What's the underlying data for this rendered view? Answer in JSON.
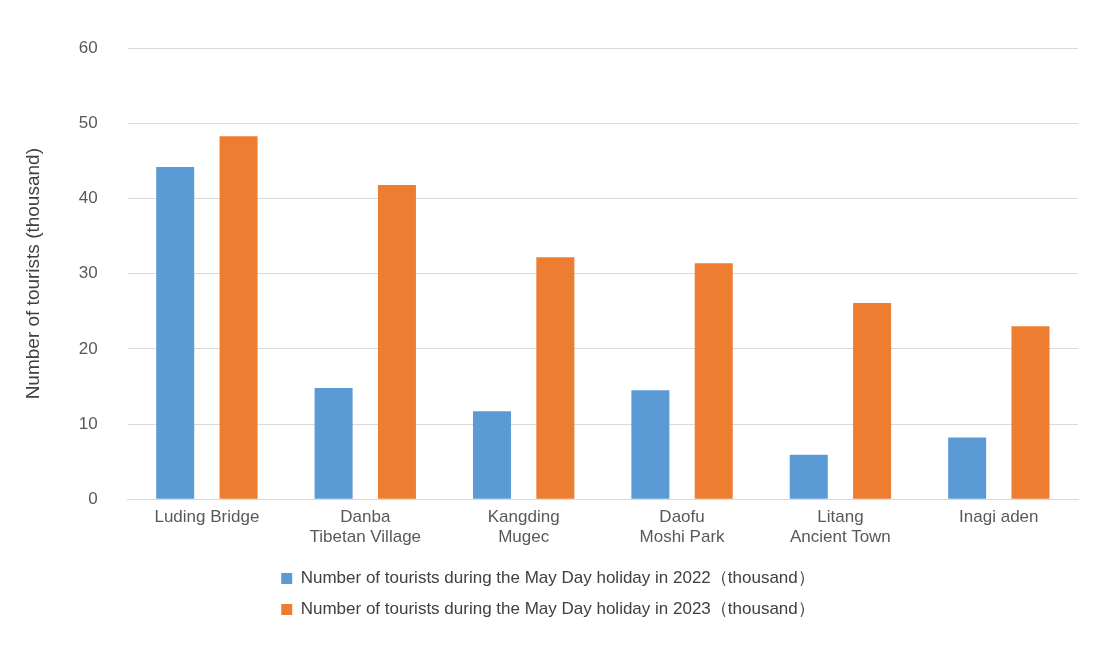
{
  "chart_data": {
    "type": "bar",
    "ylabel": "Number of tourists (thousand)",
    "categories": [
      "Luding Bridge",
      "Danba\nTibetan Village",
      "Kangding\nMugec",
      "Daofu\nMoshi Park",
      "Litang\nAncient Town",
      "Inagi aden"
    ],
    "series": [
      {
        "name": "Number of tourists during the May Day holiday in 2022（thousand）",
        "color": "#5b9bd5",
        "values": [
          44.2,
          14.8,
          11.7,
          14.5,
          5.9,
          8.2
        ]
      },
      {
        "name": "Number of tourists during the May Day holiday in 2023（thousand）",
        "color": "#ed7d31",
        "values": [
          48.3,
          41.8,
          32.2,
          31.4,
          26.1,
          23.0
        ]
      }
    ],
    "ylim": [
      0,
      60
    ],
    "yticks": [
      0,
      10,
      20,
      30,
      40,
      50,
      60
    ],
    "grid": "y",
    "legend": "bottom"
  }
}
